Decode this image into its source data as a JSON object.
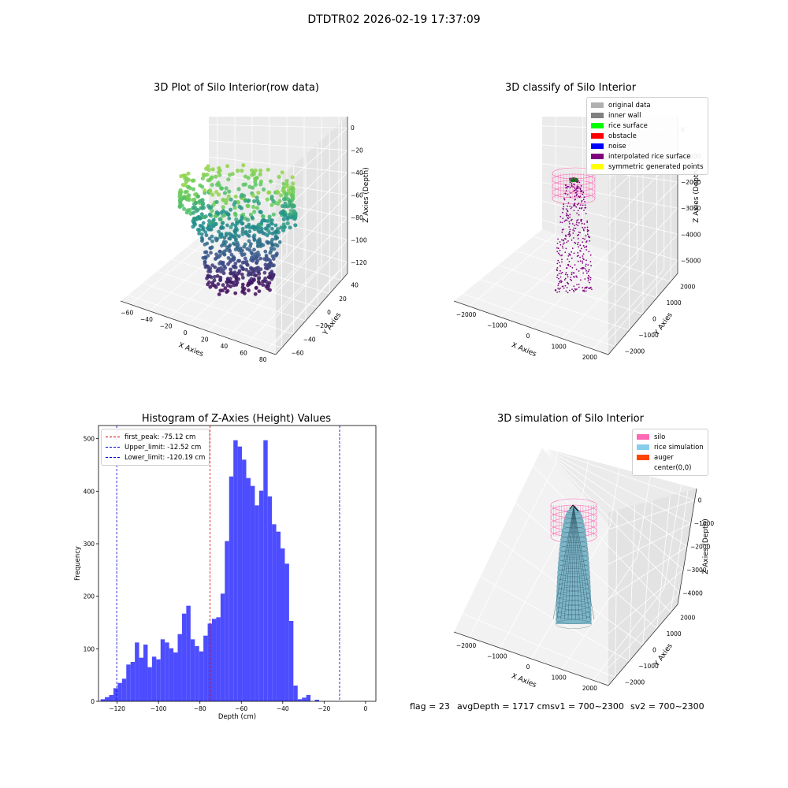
{
  "suptitle": "DTDTR02 2026-02-19 17:37:09",
  "colors": {
    "histogram_bar": "#4d4dff",
    "peak_line": "#e00000",
    "limit_line": "#0000cc",
    "silo": "#ff69b4",
    "rice_simulation": "#87ceeb",
    "auger": "#ff4500"
  },
  "chart_data": [
    {
      "type": "scatter",
      "title": "3D Plot of Silo Interior(row data)",
      "xlabel": "X Axies",
      "ylabel": "Y Axies",
      "zlabel": "Z Axies (Depth)",
      "x_ticks": [
        "−60",
        "−40",
        "−20",
        "0",
        "20",
        "40",
        "60",
        "80"
      ],
      "y_ticks": [
        "−60",
        "−40",
        "−20",
        "0",
        "20",
        "40"
      ],
      "z_ticks": [
        "0",
        "−20",
        "−40",
        "−60",
        "−80",
        "−100",
        "−120"
      ],
      "zlim": [
        -130,
        5
      ]
    },
    {
      "type": "scatter",
      "title": "3D classify of Silo Interior",
      "xlabel": "X Axies",
      "ylabel": "Y Axies",
      "zlabel": "Z Axies (Depth)",
      "x_ticks": [
        "−2000",
        "−1000",
        "0",
        "1000",
        "2000"
      ],
      "y_ticks": [
        "−2000",
        "−1000",
        "0",
        "1000",
        "2000"
      ],
      "z_ticks": [
        "0",
        "−1000",
        "−2000",
        "−3000",
        "−4000",
        "−5000"
      ],
      "legend": [
        {
          "label": "original data",
          "color": "#b0b0b0"
        },
        {
          "label": "inner wall",
          "color": "#808080"
        },
        {
          "label": "rice surface",
          "color": "#00ff00"
        },
        {
          "label": "obstacle",
          "color": "#ff0000"
        },
        {
          "label": "noise",
          "color": "#0000ff"
        },
        {
          "label": "interpolated rice surface",
          "color": "#800080"
        },
        {
          "label": "symmetric generated points",
          "color": "#ffff00"
        }
      ]
    },
    {
      "type": "bar",
      "title": "Histogram of Z-Axies (Height) Values",
      "xlabel": "Depth (cm)",
      "ylabel": "Frequency",
      "xlim": [
        -129,
        5
      ],
      "ylim": [
        0,
        525
      ],
      "x_ticks": [
        -120,
        -100,
        -80,
        -60,
        -40,
        -20,
        0
      ],
      "y_ticks": [
        0,
        100,
        200,
        300,
        400,
        500
      ],
      "bin_start": -128,
      "bin_width": 2.07,
      "values": [
        4,
        8,
        12,
        25,
        35,
        43,
        70,
        75,
        112,
        83,
        108,
        65,
        85,
        80,
        118,
        112,
        101,
        93,
        128,
        167,
        182,
        118,
        105,
        95,
        125,
        148,
        157,
        160,
        205,
        305,
        428,
        497,
        485,
        460,
        425,
        410,
        373,
        401,
        497,
        390,
        337,
        323,
        291,
        262,
        153,
        30,
        4,
        7,
        12,
        0,
        3
      ],
      "vlines": [
        {
          "label": "first_peak: -75.12 cm",
          "x": -75.12,
          "color": "#e00000"
        },
        {
          "label": "Upper_limit: -12.52 cm",
          "x": -12.52,
          "color": "#0000cc"
        },
        {
          "label": "Lower_limit: -120.19 cm",
          "x": -120.19,
          "color": "#0000cc"
        }
      ]
    },
    {
      "type": "area",
      "title": "3D simulation of Silo Interior",
      "xlabel": "X Axies",
      "ylabel": "Y Axies",
      "zlabel": "Z Axies (Depth)",
      "x_ticks": [
        "−2000",
        "−1000",
        "0",
        "1000",
        "2000"
      ],
      "y_ticks": [
        "−2000",
        "−1000",
        "0",
        "1000",
        "2000"
      ],
      "z_ticks": [
        "0",
        "−1000",
        "−2000",
        "−3000",
        "−4000"
      ],
      "legend": [
        {
          "label": "silo",
          "color": "#ff69b4"
        },
        {
          "label": "rice simulation",
          "color": "#87ceeb"
        },
        {
          "label": "auger",
          "color": "#ff4500"
        },
        {
          "label": "center(0,0)",
          "color": "#ffffff"
        }
      ]
    }
  ],
  "status": {
    "flag": "flag = 23",
    "avg_depth": "avgDepth = 1717 cmsv1 = 700~2300",
    "sv2": "sv2 = 700~2300"
  }
}
